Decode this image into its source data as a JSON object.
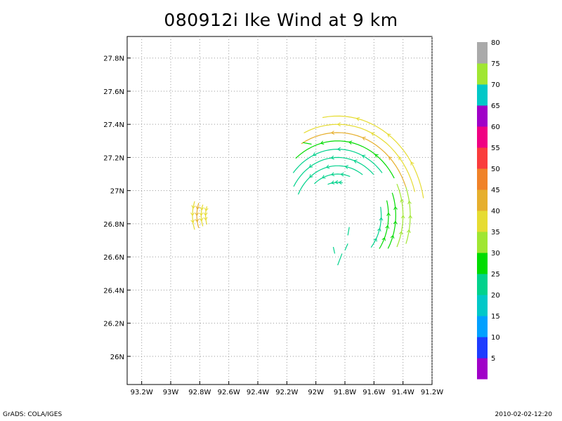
{
  "chart_data": {
    "type": "vector",
    "title": "080912i Ike Wind at 9 km",
    "xlabel": "",
    "ylabel": "",
    "xlim": [
      -93.3,
      -91.2
    ],
    "ylim": [
      25.83,
      27.93
    ],
    "x_ticks": [
      -93.2,
      -93.0,
      -92.8,
      -92.6,
      -92.4,
      -92.2,
      -92.0,
      -91.8,
      -91.6,
      -91.4,
      -91.2
    ],
    "x_tick_labels": [
      "93.2W",
      "93W",
      "92.8W",
      "92.6W",
      "92.4W",
      "92.2W",
      "92W",
      "91.8W",
      "91.6W",
      "91.4W",
      "91.2W"
    ],
    "y_ticks": [
      26.0,
      26.2,
      26.4,
      26.6,
      26.8,
      27.0,
      27.2,
      27.4,
      27.6,
      27.8
    ],
    "y_tick_labels": [
      "26N",
      "26.2N",
      "26.4N",
      "26.6N",
      "26.8N",
      "27N",
      "27.2N",
      "27.4N",
      "27.6N",
      "27.8N"
    ],
    "grid": true,
    "colorbar": {
      "labels": [
        "5",
        "10",
        "15",
        "20",
        "25",
        "30",
        "35",
        "40",
        "45",
        "50",
        "55",
        "60",
        "65",
        "70",
        "75",
        "80"
      ],
      "colors": [
        "#a000c8",
        "#1e3cff",
        "#00a0ff",
        "#00c8c8",
        "#00d28c",
        "#00dc00",
        "#a0e632",
        "#e6dc32",
        "#e6af2d",
        "#f08228",
        "#fa3c3c",
        "#f00082",
        "#a000c8",
        "#00c8c8",
        "#a0e632",
        "#aaaaaa"
      ]
    },
    "arcs": [
      {
        "center": [
          -91.85,
          26.85
        ],
        "radius": 0.5,
        "from_deg": 20,
        "to_deg": 120,
        "speed": 40
      },
      {
        "center": [
          -91.85,
          26.85
        ],
        "radius": 0.55,
        "from_deg": 15,
        "to_deg": 115,
        "speed": 35
      },
      {
        "center": [
          -91.85,
          26.85
        ],
        "radius": 0.6,
        "from_deg": 10,
        "to_deg": 100,
        "speed": 38
      },
      {
        "center": [
          -91.85,
          26.85
        ],
        "radius": 0.45,
        "from_deg": 30,
        "to_deg": 130,
        "speed": 25
      },
      {
        "center": [
          -91.85,
          26.85
        ],
        "radius": 0.4,
        "from_deg": 40,
        "to_deg": 140,
        "speed": 23
      },
      {
        "center": [
          -91.85,
          26.85
        ],
        "radius": 0.35,
        "from_deg": 45,
        "to_deg": 150,
        "speed": 22
      },
      {
        "center": [
          -91.85,
          26.85
        ],
        "radius": 0.3,
        "from_deg": 55,
        "to_deg": 155,
        "speed": 20
      },
      {
        "center": [
          -91.85,
          26.85
        ],
        "radius": 0.25,
        "from_deg": 70,
        "to_deg": 130,
        "speed": 20
      },
      {
        "center": [
          -91.85,
          26.85
        ],
        "radius": 0.2,
        "from_deg": 80,
        "to_deg": 110,
        "speed": 20
      },
      {
        "center": [
          -91.85,
          26.85
        ],
        "radius": 0.45,
        "from_deg": -25,
        "to_deg": 25,
        "speed": 30
      },
      {
        "center": [
          -91.85,
          26.85
        ],
        "radius": 0.4,
        "from_deg": -30,
        "to_deg": 20,
        "speed": 28
      },
      {
        "center": [
          -91.85,
          26.85
        ],
        "radius": 0.35,
        "from_deg": -35,
        "to_deg": 15,
        "speed": 25
      },
      {
        "center": [
          -91.85,
          26.85
        ],
        "radius": 0.3,
        "from_deg": -40,
        "to_deg": 10,
        "speed": 24
      },
      {
        "center": [
          -91.85,
          26.85
        ],
        "radius": 0.5,
        "from_deg": -20,
        "to_deg": 20,
        "speed": 33
      },
      {
        "center": [
          -92.6,
          26.85
        ],
        "radius": 0.25,
        "from_deg": 160,
        "to_deg": 200,
        "speed": 38
      },
      {
        "center": [
          -92.6,
          26.85
        ],
        "radius": 0.22,
        "from_deg": 160,
        "to_deg": 200,
        "speed": 40
      },
      {
        "center": [
          -92.6,
          26.85
        ],
        "radius": 0.19,
        "from_deg": 160,
        "to_deg": 200,
        "speed": 38
      },
      {
        "center": [
          -92.6,
          26.85
        ],
        "radius": 0.16,
        "from_deg": 160,
        "to_deg": 200,
        "speed": 36
      }
    ],
    "segments": [
      {
        "x1": -91.82,
        "y1": 26.62,
        "x2": -91.85,
        "y2": 26.55,
        "speed": 22
      },
      {
        "x1": -91.78,
        "y1": 26.68,
        "x2": -91.8,
        "y2": 26.64,
        "speed": 22
      },
      {
        "x1": -91.77,
        "y1": 26.78,
        "x2": -91.78,
        "y2": 26.73,
        "speed": 22
      },
      {
        "x1": -91.88,
        "y1": 26.66,
        "x2": -91.87,
        "y2": 26.62,
        "speed": 20
      },
      {
        "x1": -92.03,
        "y1": 27.28,
        "x2": -92.09,
        "y2": 27.29,
        "speed": 25
      }
    ]
  },
  "footer": {
    "left": "GrADS: COLA/IGES",
    "right": "2010-02-02-12:20"
  }
}
